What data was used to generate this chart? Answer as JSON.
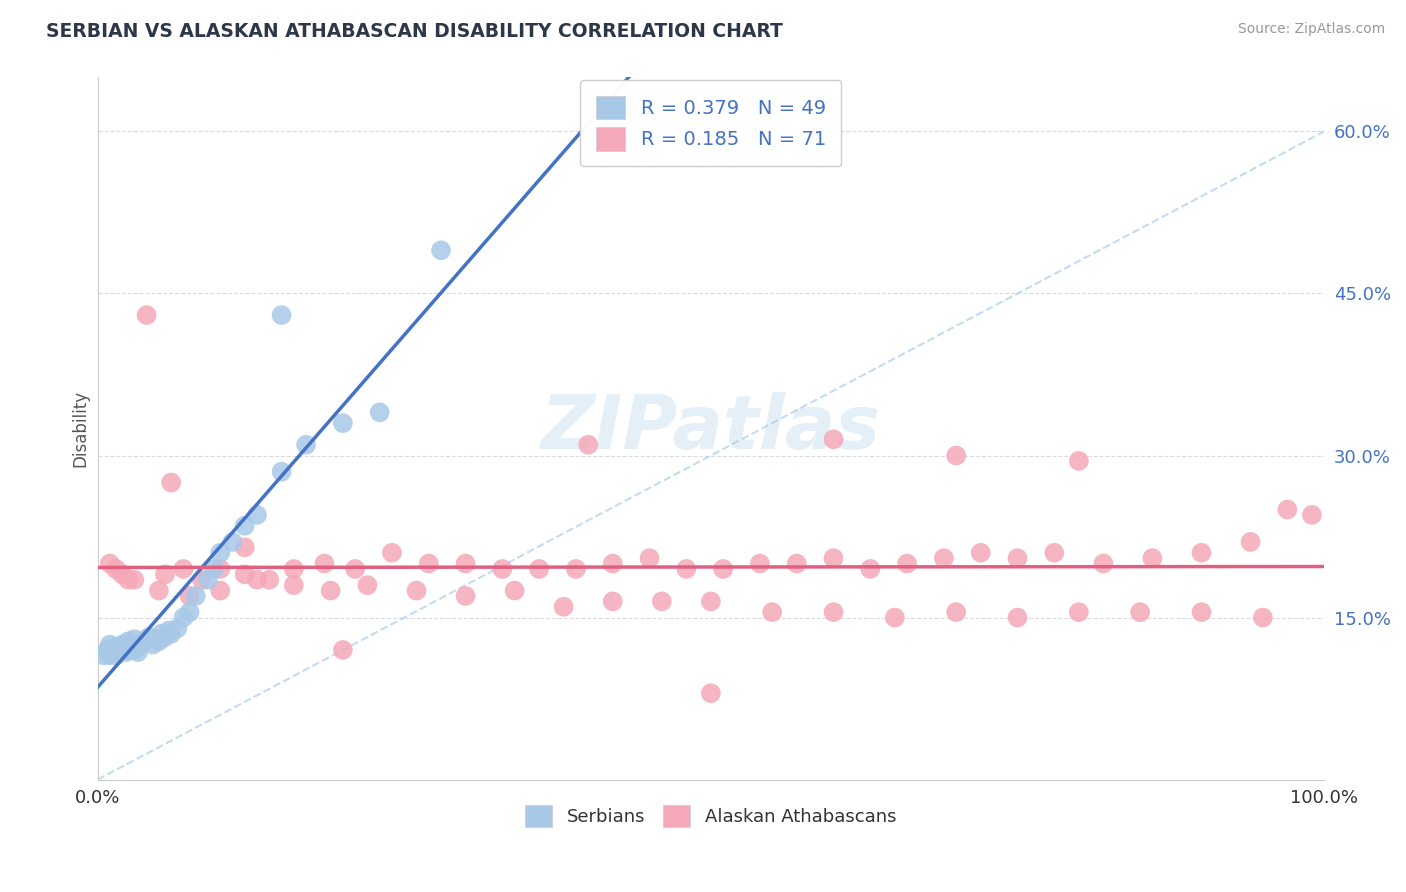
{
  "title": "SERBIAN VS ALASKAN ATHABASCAN DISABILITY CORRELATION CHART",
  "source": "Source: ZipAtlas.com",
  "ylabel": "Disability",
  "ylim": [
    0.0,
    0.65
  ],
  "xlim": [
    0.0,
    1.0
  ],
  "R_serbian": 0.379,
  "N_serbian": 49,
  "R_athabascan": 0.185,
  "N_athabascan": 71,
  "serbian_color": "#a8c8e8",
  "athabascan_color": "#f4a8b8",
  "serbian_line_color": "#4472c4",
  "athabascan_line_color": "#e06080",
  "background_color": "#ffffff",
  "grid_color": "#cccccc",
  "title_color": "#2d3748",
  "legend_color": "#4472c4",
  "serbian_points_x": [
    0.005,
    0.008,
    0.01,
    0.01,
    0.012,
    0.013,
    0.015,
    0.015,
    0.016,
    0.018,
    0.02,
    0.02,
    0.022,
    0.023,
    0.025,
    0.025,
    0.025,
    0.028,
    0.03,
    0.03,
    0.032,
    0.033,
    0.035,
    0.038,
    0.04,
    0.042,
    0.045,
    0.048,
    0.05,
    0.052,
    0.055,
    0.058,
    0.06,
    0.065,
    0.07,
    0.075,
    0.08,
    0.09,
    0.095,
    0.1,
    0.11,
    0.12,
    0.13,
    0.15,
    0.17,
    0.2,
    0.23,
    0.15,
    0.28
  ],
  "serbian_points_y": [
    0.115,
    0.12,
    0.115,
    0.125,
    0.118,
    0.122,
    0.115,
    0.12,
    0.123,
    0.118,
    0.12,
    0.125,
    0.122,
    0.118,
    0.12,
    0.122,
    0.128,
    0.125,
    0.12,
    0.13,
    0.125,
    0.118,
    0.125,
    0.128,
    0.13,
    0.132,
    0.125,
    0.13,
    0.128,
    0.135,
    0.132,
    0.138,
    0.135,
    0.14,
    0.15,
    0.155,
    0.17,
    0.185,
    0.195,
    0.21,
    0.22,
    0.235,
    0.245,
    0.285,
    0.31,
    0.33,
    0.34,
    0.43,
    0.49
  ],
  "athabascan_points_x": [
    0.01,
    0.015,
    0.02,
    0.03,
    0.04,
    0.055,
    0.07,
    0.085,
    0.1,
    0.12,
    0.14,
    0.16,
    0.185,
    0.21,
    0.24,
    0.27,
    0.3,
    0.33,
    0.36,
    0.39,
    0.42,
    0.45,
    0.48,
    0.51,
    0.54,
    0.57,
    0.6,
    0.63,
    0.66,
    0.69,
    0.72,
    0.75,
    0.78,
    0.82,
    0.86,
    0.9,
    0.94,
    0.97,
    0.99,
    0.025,
    0.05,
    0.075,
    0.1,
    0.13,
    0.16,
    0.19,
    0.22,
    0.26,
    0.3,
    0.34,
    0.38,
    0.42,
    0.46,
    0.5,
    0.55,
    0.6,
    0.65,
    0.7,
    0.75,
    0.8,
    0.85,
    0.9,
    0.95,
    0.4,
    0.6,
    0.7,
    0.8,
    0.06,
    0.12,
    0.2,
    0.5
  ],
  "athabascan_points_y": [
    0.2,
    0.195,
    0.19,
    0.185,
    0.43,
    0.19,
    0.195,
    0.185,
    0.195,
    0.19,
    0.185,
    0.195,
    0.2,
    0.195,
    0.21,
    0.2,
    0.2,
    0.195,
    0.195,
    0.195,
    0.2,
    0.205,
    0.195,
    0.195,
    0.2,
    0.2,
    0.205,
    0.195,
    0.2,
    0.205,
    0.21,
    0.205,
    0.21,
    0.2,
    0.205,
    0.21,
    0.22,
    0.25,
    0.245,
    0.185,
    0.175,
    0.17,
    0.175,
    0.185,
    0.18,
    0.175,
    0.18,
    0.175,
    0.17,
    0.175,
    0.16,
    0.165,
    0.165,
    0.165,
    0.155,
    0.155,
    0.15,
    0.155,
    0.15,
    0.155,
    0.155,
    0.155,
    0.15,
    0.31,
    0.315,
    0.3,
    0.295,
    0.275,
    0.215,
    0.12,
    0.08
  ],
  "ytick_vals": [
    0.15,
    0.3,
    0.45,
    0.6
  ],
  "ytick_labels": [
    "15.0%",
    "30.0%",
    "45.0%",
    "60.0%"
  ]
}
